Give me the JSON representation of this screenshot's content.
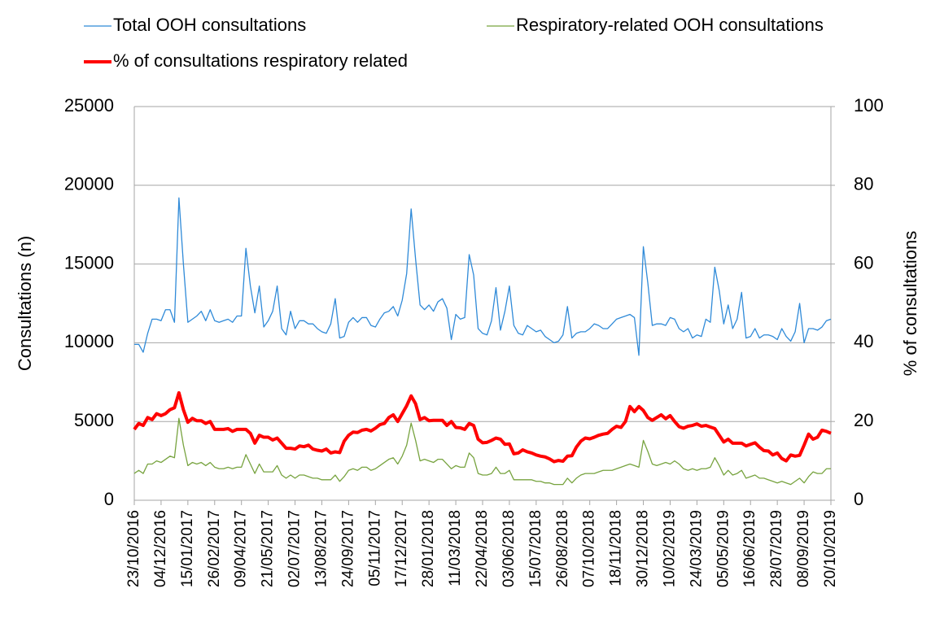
{
  "chart_data": {
    "type": "line",
    "ylabel": "Consultations (n)",
    "y2label": "% of consultations",
    "ylim": [
      0,
      25000
    ],
    "yticks": [
      0,
      5000,
      10000,
      15000,
      20000,
      25000
    ],
    "y2lim": [
      0,
      100
    ],
    "y2ticks": [
      0,
      20,
      40,
      60,
      80,
      100
    ],
    "grid": true,
    "categories": [
      "23/10/2016",
      null,
      null,
      null,
      null,
      null,
      "04/12/2016",
      null,
      null,
      null,
      null,
      null,
      "15/01/2017",
      null,
      null,
      null,
      null,
      null,
      "26/02/2017",
      null,
      null,
      null,
      null,
      null,
      "09/04/2017",
      null,
      null,
      null,
      null,
      null,
      "21/05/2017",
      null,
      null,
      null,
      null,
      null,
      "02/07/2017",
      null,
      null,
      null,
      null,
      null,
      "13/08/2017",
      null,
      null,
      null,
      null,
      null,
      "24/09/2017",
      null,
      null,
      null,
      null,
      null,
      "05/11/2017",
      null,
      null,
      null,
      null,
      null,
      "17/12/2017",
      null,
      null,
      null,
      null,
      null,
      "28/01/2018",
      null,
      null,
      null,
      null,
      null,
      "11/03/2018",
      null,
      null,
      null,
      null,
      null,
      "22/04/2018",
      null,
      null,
      null,
      null,
      null,
      "03/06/2018",
      null,
      null,
      null,
      null,
      null,
      "15/07/2018",
      null,
      null,
      null,
      null,
      null,
      "26/08/2018",
      null,
      null,
      null,
      null,
      null,
      "07/10/2018",
      null,
      null,
      null,
      null,
      null,
      "18/11/2018",
      null,
      null,
      null,
      null,
      null,
      "30/12/2018",
      null,
      null,
      null,
      null,
      null,
      "10/02/2019",
      null,
      null,
      null,
      null,
      null,
      "24/03/2019",
      null,
      null,
      null,
      null,
      null,
      "05/05/2019",
      null,
      null,
      null,
      null,
      null,
      "16/06/2019",
      null,
      null,
      null,
      null,
      null,
      "28/07/2019",
      null,
      null,
      null,
      null,
      null,
      "08/09/2019",
      null,
      null,
      null,
      null,
      null,
      "20/10/2019"
    ],
    "series": [
      {
        "name": "Total OOH consultations",
        "color": "#2f8ad8",
        "width": 1.3,
        "values": [
          9900,
          9900,
          9400,
          10600,
          11500,
          11500,
          11400,
          12100,
          12100,
          11300,
          19200,
          15000,
          11300,
          11500,
          11700,
          12000,
          11400,
          12100,
          11400,
          11300,
          11400,
          11500,
          11300,
          11700,
          11700,
          16000,
          13600,
          11900,
          13600,
          11000,
          11400,
          12000,
          13600,
          10900,
          10500,
          12000,
          10900,
          11400,
          11400,
          11200,
          11200,
          10900,
          10700,
          10600,
          11200,
          12800,
          10300,
          10400,
          11300,
          11600,
          11300,
          11600,
          11600,
          11100,
          11000,
          11500,
          11900,
          12000,
          12300,
          11700,
          12700,
          14400,
          18500,
          15300,
          12400,
          12100,
          12400,
          12000,
          12600,
          12800,
          12200,
          10200,
          11800,
          11500,
          11600,
          15600,
          14300,
          10900,
          10600,
          10500,
          11400,
          13500,
          10800,
          12000,
          13600,
          11100,
          10600,
          10500,
          11100,
          10900,
          10700,
          10800,
          10400,
          10200,
          10000,
          10100,
          10500,
          12300,
          10300,
          10600,
          10700,
          10700,
          10900,
          11200,
          11100,
          10900,
          10900,
          11200,
          11500,
          11600,
          11700,
          11800,
          11600,
          9200,
          16100,
          13800,
          11100,
          11200,
          11200,
          11100,
          11600,
          11500,
          10900,
          10700,
          10900,
          10300,
          10500,
          10400,
          11500,
          11300,
          14800,
          13300,
          11200,
          12400,
          10900,
          11500,
          13200,
          10300,
          10400,
          10900,
          10300,
          10500,
          10500,
          10400,
          10200,
          10900,
          10400,
          10100,
          10700,
          12500,
          10000,
          10900,
          10900,
          10800,
          11000,
          11400,
          11500
        ]
      },
      {
        "name": "Respiratory-related OOH consultations",
        "color": "#77a33f",
        "width": 1.3,
        "values": [
          1700,
          1900,
          1700,
          2300,
          2300,
          2500,
          2400,
          2600,
          2800,
          2700,
          5200,
          3500,
          2200,
          2400,
          2300,
          2400,
          2200,
          2400,
          2100,
          2000,
          2000,
          2100,
          2000,
          2100,
          2100,
          2900,
          2300,
          1700,
          2300,
          1800,
          1800,
          1800,
          2200,
          1600,
          1400,
          1600,
          1400,
          1600,
          1600,
          1500,
          1400,
          1400,
          1300,
          1300,
          1300,
          1600,
          1200,
          1500,
          1900,
          2000,
          1900,
          2100,
          2100,
          1900,
          2000,
          2200,
          2400,
          2600,
          2700,
          2300,
          2800,
          3500,
          4900,
          3800,
          2500,
          2600,
          2500,
          2400,
          2600,
          2600,
          2300,
          2000,
          2200,
          2100,
          2100,
          3000,
          2700,
          1700,
          1600,
          1600,
          1700,
          2100,
          1700,
          1700,
          1900,
          1300,
          1300,
          1300,
          1300,
          1300,
          1200,
          1200,
          1100,
          1100,
          1000,
          1000,
          1000,
          1400,
          1100,
          1400,
          1600,
          1700,
          1700,
          1700,
          1800,
          1900,
          1900,
          1900,
          2000,
          2100,
          2200,
          2300,
          2200,
          2100,
          3800,
          3100,
          2300,
          2200,
          2300,
          2400,
          2300,
          2500,
          2300,
          2000,
          1900,
          2000,
          1900,
          2000,
          2000,
          2100,
          2700,
          2200,
          1600,
          1900,
          1600,
          1700,
          1900,
          1400,
          1500,
          1600,
          1400,
          1400,
          1300,
          1200,
          1100,
          1200,
          1100,
          1000,
          1200,
          1400,
          1100,
          1500,
          1800,
          1700,
          1700,
          2000,
          2000
        ]
      },
      {
        "name": "% of consultations respiratory related",
        "color": "#ff0000",
        "width": 4,
        "axis": "y2",
        "values": [
          18,
          19.5,
          19,
          21,
          20.5,
          22,
          21.5,
          22,
          23,
          23.5,
          27.3,
          23,
          19.8,
          20.8,
          20.2,
          20.2,
          19.5,
          20,
          18,
          18,
          18,
          18.2,
          17.5,
          18,
          18,
          18,
          17,
          14.5,
          16.5,
          16,
          16,
          15.3,
          15.8,
          14.5,
          13.2,
          13.2,
          13,
          13.8,
          13.6,
          14,
          13,
          12.7,
          12.5,
          13,
          12,
          12.3,
          12.1,
          15,
          16.5,
          17.3,
          17.2,
          17.8,
          18,
          17.6,
          18.3,
          19.2,
          19.5,
          21,
          21.7,
          20,
          22,
          24,
          26.5,
          24.5,
          20.5,
          21,
          20.2,
          20.3,
          20.3,
          20.3,
          19,
          20,
          18.5,
          18.4,
          18,
          19.5,
          19,
          15.5,
          14.6,
          14.7,
          15.2,
          15.8,
          15.5,
          14.2,
          14.3,
          11.8,
          12,
          12.8,
          12.3,
          12,
          11.5,
          11.2,
          11,
          10.5,
          9.8,
          10.1,
          9.9,
          11.2,
          11.3,
          13.5,
          15,
          15.8,
          15.6,
          16,
          16.5,
          16.8,
          17,
          18,
          18.8,
          18.5,
          20,
          23.8,
          22.5,
          23.8,
          22.8,
          21,
          20.3,
          21,
          21.7,
          20.7,
          21.5,
          20,
          18.7,
          18.3,
          18.8,
          19,
          19.4,
          18.8,
          19,
          18.6,
          18.2,
          16.5,
          14.8,
          15.5,
          14.5,
          14.5,
          14.5,
          13.8,
          14.2,
          14.6,
          13.5,
          12.6,
          12.5,
          11.5,
          12,
          10.6,
          10,
          11.5,
          11.2,
          11.4,
          14,
          16.8,
          15.5,
          16,
          17.8,
          17.5,
          17
        ]
      }
    ]
  }
}
